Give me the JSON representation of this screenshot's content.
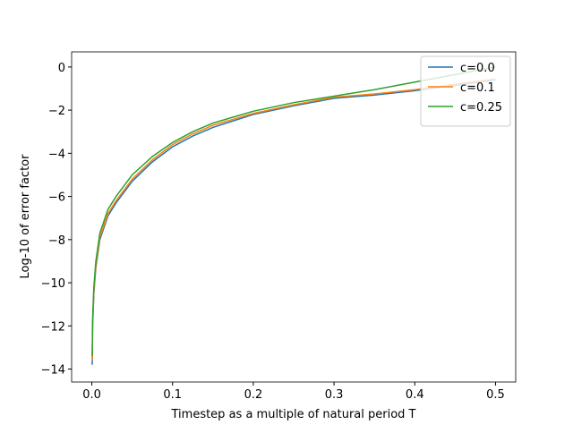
{
  "chart_data": {
    "type": "line",
    "xlabel": "Timestep as a multiple of natural period T",
    "ylabel": "Log-10 of error factor",
    "x": [
      0.0005,
      0.001,
      0.0025,
      0.005,
      0.01,
      0.02,
      0.03,
      0.05,
      0.075,
      0.1,
      0.125,
      0.15,
      0.2,
      0.25,
      0.3,
      0.35,
      0.4,
      0.45,
      0.5
    ],
    "series": [
      {
        "name": "c=0.0",
        "color": "#1f77b4",
        "values": [
          -13.8,
          -12.0,
          -10.5,
          -9.3,
          -8.0,
          -6.9,
          -6.3,
          -5.3,
          -4.4,
          -3.7,
          -3.2,
          -2.8,
          -2.2,
          -1.8,
          -1.45,
          -1.3,
          -1.1,
          -0.85,
          -0.6
        ]
      },
      {
        "name": "c=0.1",
        "color": "#ff7f0e",
        "values": [
          -13.6,
          -11.9,
          -10.4,
          -9.2,
          -7.9,
          -6.8,
          -6.2,
          -5.2,
          -4.3,
          -3.6,
          -3.1,
          -2.7,
          -2.15,
          -1.75,
          -1.4,
          -1.25,
          -1.05,
          -0.8,
          -0.55
        ]
      },
      {
        "name": "c=0.25",
        "color": "#2ca02c",
        "values": [
          -13.4,
          -11.7,
          -10.2,
          -9.0,
          -7.7,
          -6.6,
          -6.0,
          -5.0,
          -4.15,
          -3.5,
          -3.0,
          -2.6,
          -2.05,
          -1.65,
          -1.35,
          -1.05,
          -0.7,
          -0.35,
          0.0
        ]
      }
    ],
    "xlim": [
      -0.025,
      0.525
    ],
    "ylim": [
      -14.6,
      0.7
    ],
    "xticks": [
      {
        "value": 0,
        "label": "0.0"
      },
      {
        "value": 0.1,
        "label": "0.1"
      },
      {
        "value": 0.2,
        "label": "0.2"
      },
      {
        "value": 0.3,
        "label": "0.3"
      },
      {
        "value": 0.4,
        "label": "0.4"
      },
      {
        "value": 0.5,
        "label": "0.5"
      }
    ],
    "yticks": [
      {
        "value": -14,
        "label": "−14"
      },
      {
        "value": -12,
        "label": "−12"
      },
      {
        "value": -10,
        "label": "−10"
      },
      {
        "value": -8,
        "label": "−8"
      },
      {
        "value": -6,
        "label": "−6"
      },
      {
        "value": -4,
        "label": "−4"
      },
      {
        "value": -2,
        "label": "−2"
      },
      0
    ],
    "legend": "upper right"
  }
}
